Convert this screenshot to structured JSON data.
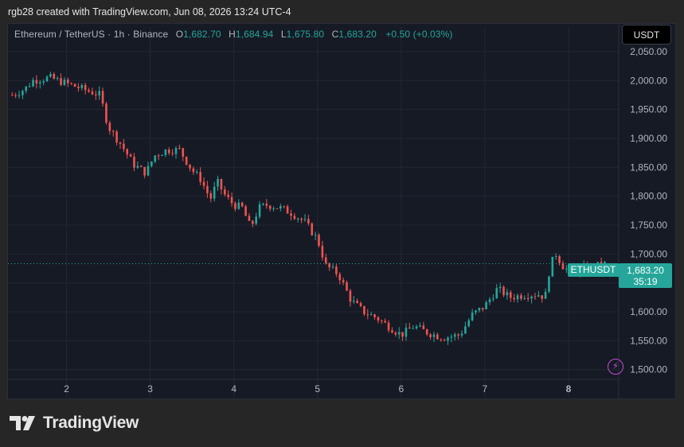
{
  "header": {
    "credit": "rgb28 created with TradingView.com, Jun 08, 2026 13:24 UTC-4"
  },
  "legend": {
    "symbol": "Ethereum / TetherUS · 1h · Binance",
    "o_label": "O",
    "o_value": "1,682.70",
    "h_label": "H",
    "h_value": "1,684.94",
    "l_label": "L",
    "l_value": "1,675.80",
    "c_label": "C",
    "c_value": "1,683.20",
    "change": "+0.50 (+0.03%)"
  },
  "currency_button": "USDT",
  "price_tag": {
    "symbol": "ETHUSDT",
    "price": "1,683.20",
    "countdown": "35:19"
  },
  "brand": "TradingView",
  "colors": {
    "up": "#26a69a",
    "down": "#ef5350",
    "background": "#161a25",
    "grid": "#232733"
  },
  "chart_data": {
    "type": "candlestick",
    "x_ticks": [
      "2",
      "3",
      "4",
      "5",
      "6",
      "7",
      "8"
    ],
    "y_ticks": [
      "2,050.00",
      "2,000.00",
      "1,950.00",
      "1,900.00",
      "1,850.00",
      "1,800.00",
      "1,750.00",
      "1,700.00",
      "1,650.00",
      "1,600.00",
      "1,550.00",
      "1,500.00"
    ],
    "ylim": [
      1490,
      2065
    ],
    "xlim": [
      1.3,
      8.6
    ],
    "last_price": 1683.2,
    "close_path": [
      [
        1.35,
        1975
      ],
      [
        1.5,
        1985
      ],
      [
        1.6,
        2000
      ],
      [
        1.8,
        2005
      ],
      [
        2.0,
        1995
      ],
      [
        2.2,
        1985
      ],
      [
        2.4,
        1975
      ],
      [
        2.5,
        1920
      ],
      [
        2.65,
        1890
      ],
      [
        2.8,
        1855
      ],
      [
        2.95,
        1840
      ],
      [
        3.05,
        1870
      ],
      [
        3.2,
        1880
      ],
      [
        3.35,
        1880
      ],
      [
        3.5,
        1845
      ],
      [
        3.6,
        1830
      ],
      [
        3.72,
        1795
      ],
      [
        3.8,
        1825
      ],
      [
        3.9,
        1800
      ],
      [
        4.0,
        1785
      ],
      [
        4.1,
        1780
      ],
      [
        4.2,
        1745
      ],
      [
        4.3,
        1780
      ],
      [
        4.4,
        1785
      ],
      [
        4.55,
        1780
      ],
      [
        4.7,
        1770
      ],
      [
        4.85,
        1755
      ],
      [
        5.0,
        1725
      ],
      [
        5.1,
        1680
      ],
      [
        5.25,
        1665
      ],
      [
        5.4,
        1620
      ],
      [
        5.55,
        1600
      ],
      [
        5.7,
        1590
      ],
      [
        5.85,
        1575
      ],
      [
        6.0,
        1560
      ],
      [
        6.15,
        1575
      ],
      [
        6.3,
        1565
      ],
      [
        6.5,
        1555
      ],
      [
        6.7,
        1560
      ],
      [
        6.85,
        1595
      ],
      [
        7.0,
        1610
      ],
      [
        7.15,
        1640
      ],
      [
        7.3,
        1625
      ],
      [
        7.5,
        1630
      ],
      [
        7.65,
        1630
      ],
      [
        7.72,
        1625
      ],
      [
        7.78,
        1680
      ],
      [
        7.85,
        1700
      ],
      [
        7.95,
        1675
      ],
      [
        8.05,
        1670
      ],
      [
        8.2,
        1675
      ],
      [
        8.35,
        1680
      ],
      [
        8.45,
        1683.2
      ]
    ]
  }
}
